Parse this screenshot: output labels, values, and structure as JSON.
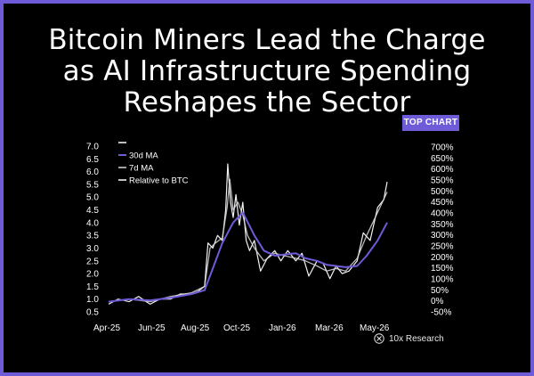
{
  "title_lines": [
    "Bitcoin Miners Lead the Charge",
    "as AI Infrastructure Spending",
    "Reshapes the Sector"
  ],
  "badge": "TOP CHART",
  "brand": "10x Research",
  "colors": {
    "background": "#000000",
    "accent": "#6e5bd8",
    "series_7d": "#d9d9d9",
    "series_30d": "#6e5bd8",
    "series_relative": "#ffffff"
  },
  "chart_data": {
    "type": "line",
    "x_tick_labels": [
      "Apr-25",
      "Jun-25",
      "Aug-25",
      "Oct-25",
      "Jan-26",
      "Mar-26",
      "May-26"
    ],
    "y_left_ticks": [
      "7.0",
      "6.5",
      "6.0",
      "5.5",
      "5.0",
      "4.5",
      "4.0",
      "3.5",
      "3.0",
      "2.5",
      "2.0",
      "1.5",
      "1.0",
      "0.5"
    ],
    "y_right_ticks": [
      "700%",
      "650%",
      "600%",
      "550%",
      "500%",
      "450%",
      "400%",
      "350%",
      "300%",
      "250%",
      "200%",
      "150%",
      "100%",
      "50%",
      "0%",
      "-50%"
    ],
    "ylim_left": [
      0.5,
      7.0
    ],
    "ylim_right": [
      -50,
      700
    ],
    "xlim": [
      "2025-04-01",
      "2026-06-01"
    ],
    "legend": [
      "",
      "30d MA",
      "7d MA",
      "Relative to BTC"
    ],
    "grid": false,
    "series": [
      {
        "name": "Relative to BTC",
        "axis": "left",
        "x": [
          "2025-04-01",
          "2025-04-15",
          "2025-05-01",
          "2025-05-15",
          "2025-06-01",
          "2025-06-15",
          "2025-07-01",
          "2025-07-15",
          "2025-08-01",
          "2025-08-10",
          "2025-08-20",
          "2025-08-25",
          "2025-09-01",
          "2025-09-08",
          "2025-09-15",
          "2025-09-20",
          "2025-09-23",
          "2025-09-27",
          "2025-10-01",
          "2025-10-05",
          "2025-10-10",
          "2025-10-15",
          "2025-10-20",
          "2025-10-25",
          "2025-11-01",
          "2025-11-10",
          "2025-11-20",
          "2025-12-01",
          "2025-12-10",
          "2025-12-20",
          "2026-01-01",
          "2026-01-10",
          "2026-01-20",
          "2026-02-01",
          "2026-02-10",
          "2026-02-20",
          "2026-03-01",
          "2026-03-10",
          "2026-03-20",
          "2026-04-01",
          "2026-04-10",
          "2026-04-20",
          "2026-05-01",
          "2026-05-10",
          "2026-05-15"
        ],
        "values": [
          0.8,
          1.0,
          0.9,
          1.1,
          0.8,
          1.0,
          1.0,
          1.2,
          1.2,
          1.3,
          1.5,
          3.2,
          3.0,
          3.5,
          3.3,
          4.5,
          6.3,
          4.8,
          4.2,
          5.1,
          3.9,
          4.8,
          3.3,
          2.9,
          3.3,
          2.1,
          2.6,
          2.9,
          2.5,
          2.9,
          2.5,
          2.8,
          1.9,
          2.5,
          2.4,
          1.8,
          2.3,
          2.0,
          2.1,
          2.5,
          3.6,
          3.3,
          4.6,
          4.9,
          5.6
        ]
      },
      {
        "name": "7d MA",
        "axis": "left",
        "x": [
          "2025-04-01",
          "2025-05-01",
          "2025-06-01",
          "2025-07-01",
          "2025-08-01",
          "2025-08-20",
          "2025-08-28",
          "2025-09-05",
          "2025-09-15",
          "2025-09-22",
          "2025-09-26",
          "2025-10-01",
          "2025-10-08",
          "2025-10-15",
          "2025-10-22",
          "2025-11-01",
          "2025-11-15",
          "2025-12-01",
          "2025-12-15",
          "2026-01-01",
          "2026-01-15",
          "2026-02-01",
          "2026-02-15",
          "2026-03-01",
          "2026-03-15",
          "2026-04-01",
          "2026-04-15",
          "2026-05-01",
          "2026-05-15"
        ],
        "values": [
          0.9,
          1.0,
          0.9,
          1.1,
          1.25,
          1.5,
          3.0,
          3.2,
          3.4,
          4.6,
          5.7,
          4.5,
          4.8,
          4.3,
          3.5,
          3.0,
          2.5,
          2.8,
          2.7,
          2.6,
          2.5,
          2.3,
          2.1,
          2.2,
          2.1,
          2.6,
          3.5,
          4.4,
          5.2
        ]
      },
      {
        "name": "30d MA",
        "axis": "left",
        "x": [
          "2025-04-01",
          "2025-05-01",
          "2025-06-01",
          "2025-07-01",
          "2025-08-01",
          "2025-08-20",
          "2025-09-01",
          "2025-09-15",
          "2025-10-01",
          "2025-10-15",
          "2025-11-01",
          "2025-11-15",
          "2025-12-01",
          "2025-12-15",
          "2026-01-01",
          "2026-01-15",
          "2026-02-01",
          "2026-02-15",
          "2026-03-01",
          "2026-03-15",
          "2026-04-01",
          "2026-04-15",
          "2026-05-01",
          "2026-05-15"
        ],
        "values": [
          0.9,
          1.0,
          0.95,
          1.05,
          1.2,
          1.35,
          2.2,
          3.2,
          4.0,
          4.4,
          3.5,
          2.9,
          2.7,
          2.75,
          2.8,
          2.6,
          2.5,
          2.35,
          2.3,
          2.25,
          2.3,
          2.7,
          3.3,
          4.0
        ]
      }
    ]
  }
}
